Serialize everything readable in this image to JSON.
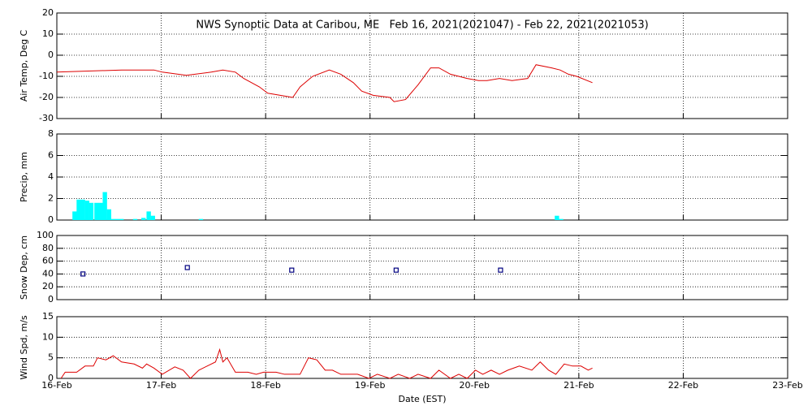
{
  "chart_data": [
    {
      "type": "line",
      "title": "NWS Synoptic Data at Caribou, ME   Feb 16, 2021(2021047) - Feb 22, 2021(2021053)",
      "y_label": "Air Temp, Deg C",
      "xlim": [
        16,
        23
      ],
      "xticks": [
        {
          "value": 16,
          "label": "16-Feb"
        },
        {
          "value": 17,
          "label": "17-Feb"
        },
        {
          "value": 18,
          "label": "18-Feb"
        },
        {
          "value": 19,
          "label": "19-Feb"
        },
        {
          "value": 20,
          "label": "20-Feb"
        },
        {
          "value": 21,
          "label": "21-Feb"
        },
        {
          "value": 22,
          "label": "22-Feb"
        },
        {
          "value": 23,
          "label": "23-Feb"
        }
      ],
      "ylim": [
        -30,
        20
      ],
      "yticks": [
        -30,
        -20,
        -10,
        0,
        10,
        20
      ],
      "grid": true,
      "color": "#dd0000",
      "x": [
        16.0,
        16.62,
        16.93,
        17.01,
        17.24,
        17.48,
        17.59,
        17.71,
        17.79,
        17.94,
        18.02,
        18.14,
        18.26,
        18.33,
        18.45,
        18.61,
        18.72,
        18.84,
        18.92,
        19.03,
        19.19,
        19.23,
        19.34,
        19.46,
        19.58,
        19.66,
        19.77,
        19.93,
        20.04,
        20.12,
        20.24,
        20.36,
        20.51,
        20.59,
        20.74,
        20.82,
        20.9,
        20.98,
        21.13
      ],
      "values": [
        -8,
        -7,
        -7,
        -8,
        -9.5,
        -8,
        -7,
        -8,
        -11,
        -15,
        -18,
        -19,
        -20,
        -15,
        -10,
        -7,
        -9,
        -13,
        -17,
        -19,
        -20,
        -22,
        -21,
        -14,
        -6,
        -6,
        -9,
        -11,
        -12,
        -12,
        -11,
        -12,
        -11,
        -4.5,
        -6,
        -7,
        -9,
        -10,
        -13
      ]
    },
    {
      "type": "bar",
      "y_label": "Precip, mm",
      "xlim": [
        16,
        23
      ],
      "xticks": [
        {
          "value": 16,
          "label": "16-Feb"
        },
        {
          "value": 17,
          "label": "17-Feb"
        },
        {
          "value": 18,
          "label": "18-Feb"
        },
        {
          "value": 19,
          "label": "19-Feb"
        },
        {
          "value": 20,
          "label": "20-Feb"
        },
        {
          "value": 21,
          "label": "21-Feb"
        },
        {
          "value": 22,
          "label": "22-Feb"
        },
        {
          "value": 23,
          "label": "23-Feb"
        }
      ],
      "ylim": [
        0,
        8
      ],
      "yticks": [
        0,
        2,
        4,
        6,
        8
      ],
      "grid": true,
      "color": "#00ffff",
      "x": [
        16.17,
        16.21,
        16.25,
        16.29,
        16.33,
        16.38,
        16.42,
        16.46,
        16.5,
        16.54,
        16.58,
        16.62,
        16.75,
        16.83,
        16.88,
        16.92,
        17.38,
        20.79,
        20.83
      ],
      "values": [
        0.8,
        1.9,
        1.9,
        1.8,
        1.6,
        1.6,
        1.6,
        2.6,
        1.0,
        0.1,
        0.1,
        0.1,
        0.1,
        0.2,
        0.8,
        0.4,
        0.1,
        0.4,
        0.1
      ]
    },
    {
      "type": "scatter",
      "y_label": "Snow Dep, cm",
      "xlim": [
        16,
        23
      ],
      "xticks": [
        {
          "value": 16,
          "label": "16-Feb"
        },
        {
          "value": 17,
          "label": "17-Feb"
        },
        {
          "value": 18,
          "label": "18-Feb"
        },
        {
          "value": 19,
          "label": "19-Feb"
        },
        {
          "value": 20,
          "label": "20-Feb"
        },
        {
          "value": 21,
          "label": "21-Feb"
        },
        {
          "value": 22,
          "label": "22-Feb"
        },
        {
          "value": 23,
          "label": "23-Feb"
        }
      ],
      "ylim": [
        0,
        100
      ],
      "yticks": [
        0,
        20,
        40,
        60,
        80,
        100
      ],
      "grid": true,
      "color": "#000080",
      "x": [
        16.25,
        17.25,
        18.25,
        19.25,
        20.25
      ],
      "values": [
        40,
        50,
        46,
        46,
        46
      ]
    },
    {
      "type": "line",
      "y_label": "Wind Spd, m/s",
      "x_label": "Date (EST)",
      "xlim": [
        16,
        23
      ],
      "xticks": [
        {
          "value": 16,
          "label": "16-Feb"
        },
        {
          "value": 17,
          "label": "17-Feb"
        },
        {
          "value": 18,
          "label": "18-Feb"
        },
        {
          "value": 19,
          "label": "19-Feb"
        },
        {
          "value": 20,
          "label": "20-Feb"
        },
        {
          "value": 21,
          "label": "21-Feb"
        },
        {
          "value": 22,
          "label": "22-Feb"
        },
        {
          "value": 23,
          "label": "23-Feb"
        }
      ],
      "ylim": [
        0,
        15
      ],
      "yticks": [
        0,
        5,
        10,
        15
      ],
      "grid": true,
      "color": "#dd0000",
      "x": [
        16.04,
        16.08,
        16.19,
        16.27,
        16.35,
        16.39,
        16.47,
        16.54,
        16.62,
        16.74,
        16.82,
        16.86,
        16.93,
        17.01,
        17.13,
        17.21,
        17.28,
        17.36,
        17.44,
        17.52,
        17.56,
        17.59,
        17.63,
        17.71,
        17.83,
        17.91,
        17.98,
        18.1,
        18.18,
        18.33,
        18.41,
        18.49,
        18.57,
        18.64,
        18.72,
        18.88,
        18.99,
        19.07,
        19.19,
        19.27,
        19.38,
        19.46,
        19.58,
        19.66,
        19.77,
        19.85,
        19.93,
        20.01,
        20.08,
        20.16,
        20.24,
        20.32,
        20.43,
        20.55,
        20.63,
        20.71,
        20.78,
        20.86,
        20.94,
        21.02,
        21.09,
        21.13
      ],
      "values": [
        0,
        1.5,
        1.5,
        3,
        3,
        5,
        4.5,
        5.5,
        4,
        3.5,
        2.5,
        3.5,
        2.5,
        1,
        2.8,
        2,
        0,
        2,
        3,
        4,
        7,
        4,
        5,
        1.5,
        1.5,
        1,
        1.5,
        1.5,
        1,
        1,
        5,
        4.5,
        2,
        2,
        1,
        1,
        0,
        1,
        0,
        1,
        0,
        1,
        0,
        2,
        0,
        1,
        0,
        2,
        1,
        2,
        1,
        2,
        3,
        2,
        4,
        2,
        1,
        3.5,
        3,
        3,
        2,
        2.5
      ]
    }
  ]
}
